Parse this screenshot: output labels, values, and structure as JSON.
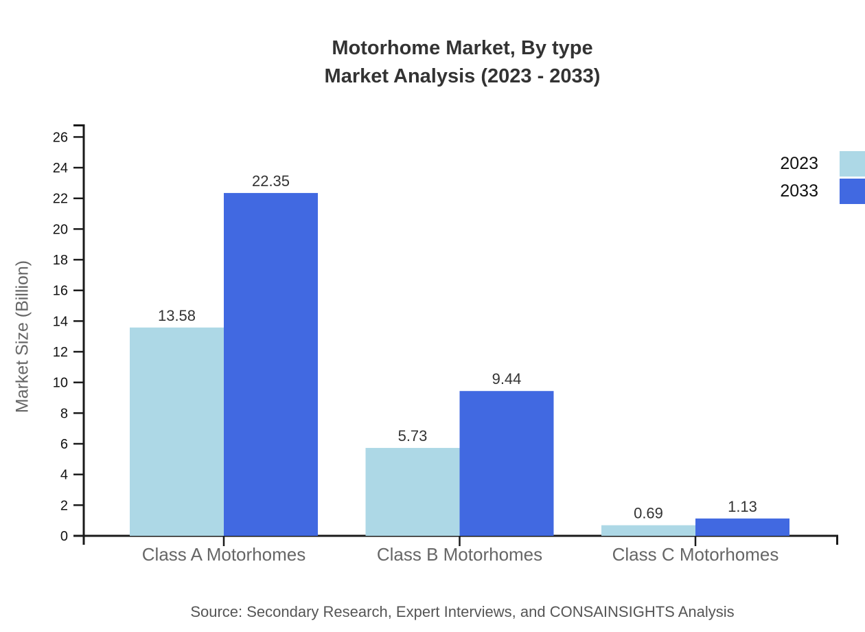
{
  "title": {
    "line1": "Motorhome Market, By type",
    "line2": "Market Analysis (2023 - 2033)"
  },
  "source": "Source: Secondary Research, Expert Interviews, and CONSAINSIGHTS Analysis",
  "colors": {
    "series_2023": "#ADD8E6",
    "series_2033": "#4169E1",
    "axis": "#1a1a1a",
    "title_text": "#333333",
    "category_text": "#666666",
    "value_label_text": "#333333",
    "tick_label_text": "#111111"
  },
  "chart_data": {
    "type": "bar",
    "title": "Motorhome Market, By type Market Analysis (2023 - 2033)",
    "categories": [
      "Class A Motorhomes",
      "Class B Motorhomes",
      "Class C Motorhomes"
    ],
    "series": [
      {
        "name": "2023",
        "color": "#ADD8E6",
        "values": [
          13.58,
          5.73,
          0.69
        ]
      },
      {
        "name": "2033",
        "color": "#4169E1",
        "values": [
          22.35,
          9.44,
          1.13
        ]
      }
    ],
    "xlabel": "",
    "ylabel": "Market Size (Billion)",
    "ylim": [
      0,
      26
    ],
    "ytick_step": 2,
    "yticks": [
      0,
      2,
      4,
      6,
      8,
      10,
      12,
      14,
      16,
      18,
      20,
      22,
      24,
      26
    ],
    "grid": false,
    "legend_position": "top-right",
    "value_labels_shown": true
  }
}
